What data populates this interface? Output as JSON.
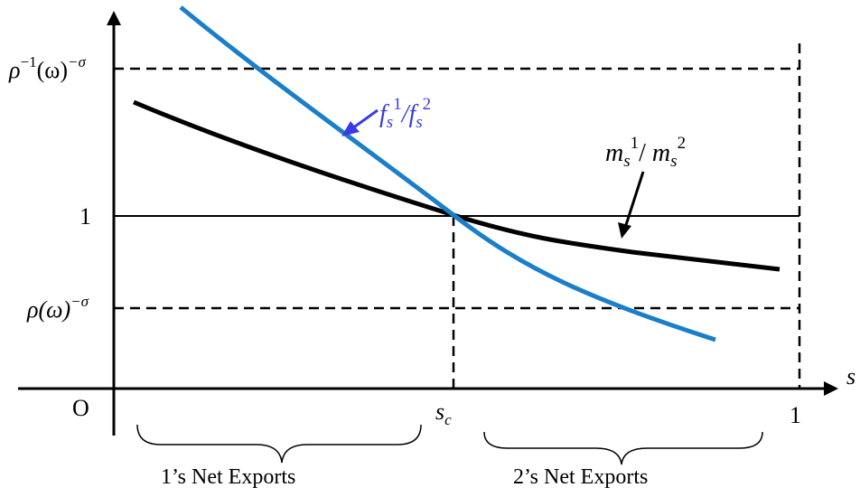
{
  "axes": {
    "x_label": "s",
    "origin_label": "O"
  },
  "y_ticks": {
    "upper": {
      "base": "ρ",
      "exp1": "−1",
      "mid": "(ω)",
      "exp2": "−σ"
    },
    "one": "1",
    "lower": {
      "base": "ρ(ω)",
      "exp": "−σ"
    }
  },
  "x_ticks": {
    "sc": {
      "base": "s",
      "sub": "c"
    },
    "one": "1"
  },
  "curves": {
    "f_ratio": {
      "f1": "f",
      "sub1": "s",
      "sup1": "1",
      "slash": "/",
      "f2": "f",
      "sub2": "s",
      "sup2": "2",
      "color": "#1a7fc8",
      "label_color": "#3a3ae6"
    },
    "m_ratio": {
      "m1": "m",
      "sub1": "s",
      "sup1": "1",
      "slash": "/ ",
      "m2": "m",
      "sub2": "s",
      "sup2": "2",
      "color": "#000000"
    }
  },
  "regions": {
    "left": "1’s Net Exports",
    "right": "2’s Net Exports"
  }
}
